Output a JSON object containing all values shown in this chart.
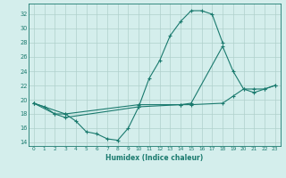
{
  "xlabel": "Humidex (Indice chaleur)",
  "bg_color": "#d4eeec",
  "line_color": "#1a7a6e",
  "grid_color": "#b0d0cc",
  "xlim": [
    -0.5,
    23.5
  ],
  "ylim": [
    13.5,
    33.5
  ],
  "yticks": [
    14,
    16,
    18,
    20,
    22,
    24,
    26,
    28,
    30,
    32
  ],
  "xticks": [
    0,
    1,
    2,
    3,
    4,
    5,
    6,
    7,
    8,
    9,
    10,
    11,
    12,
    13,
    14,
    15,
    16,
    17,
    18,
    19,
    20,
    21,
    22,
    23
  ],
  "line1_x": [
    0,
    1,
    2,
    3,
    4,
    5,
    6,
    7,
    8,
    9,
    10,
    11,
    12,
    13,
    14,
    15,
    16,
    17,
    18
  ],
  "line1_y": [
    19.5,
    19.0,
    18.0,
    18.0,
    17.0,
    15.5,
    15.2,
    14.5,
    14.3,
    16.0,
    19.0,
    23.0,
    25.5,
    29.0,
    31.0,
    32.5,
    32.5,
    32.0,
    28.0
  ],
  "line2_x": [
    0,
    2,
    3,
    10,
    14,
    15,
    18,
    19,
    20,
    21,
    22,
    23
  ],
  "line2_y": [
    19.5,
    18.0,
    17.5,
    19.0,
    19.3,
    19.3,
    19.5,
    20.5,
    21.5,
    21.5,
    21.5,
    22.0
  ],
  "line3_x": [
    0,
    3,
    10,
    14,
    15,
    18,
    19,
    20,
    21,
    22,
    23
  ],
  "line3_y": [
    19.5,
    18.0,
    19.3,
    19.3,
    19.5,
    27.5,
    24.0,
    21.5,
    21.0,
    21.5,
    22.0
  ]
}
